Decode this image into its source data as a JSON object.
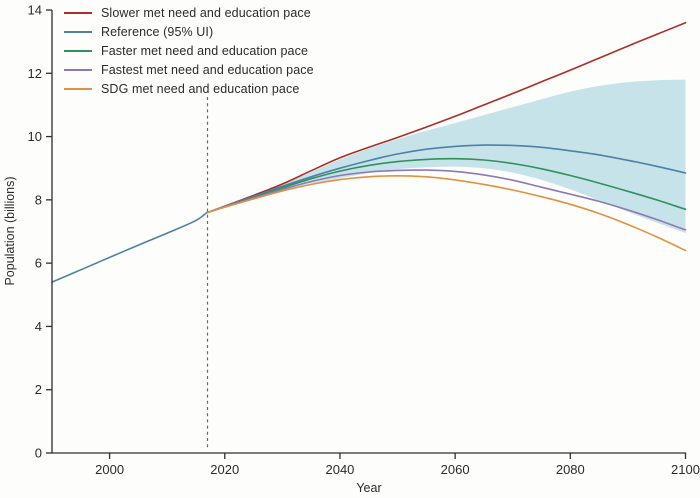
{
  "figure": {
    "background": "#fdfdfc",
    "axis_color": "#2f2f2f",
    "text_color": "#2b2b2b",
    "dashed_line_color": "#4a7082"
  },
  "legend": {
    "items": [
      {
        "label": "Slower met need and education pace",
        "color": "#ab2e26",
        "series": "slower"
      },
      {
        "label": "Reference (95% UI)",
        "color": "#4d81a8",
        "series": "reference"
      },
      {
        "label": "Faster met need and education pace",
        "color": "#30915a",
        "series": "faster"
      },
      {
        "label": "Fastest met need and education pace",
        "color": "#8b7ab5",
        "series": "fastest"
      },
      {
        "label": "SDG met need and education pace",
        "color": "#e2913f",
        "series": "sdg"
      }
    ]
  },
  "chart_data": {
    "type": "line",
    "title": "",
    "xlabel": "Year",
    "ylabel": "Population (billions)",
    "xlim": [
      1990,
      2100
    ],
    "ylim": [
      0,
      14
    ],
    "x_ticks": [
      2000,
      2020,
      2040,
      2060,
      2080,
      2100
    ],
    "y_ticks": [
      0,
      2,
      4,
      6,
      8,
      10,
      12,
      14
    ],
    "grid": false,
    "legend_position": "top-left",
    "reference_year_line": 2017,
    "historical": {
      "name": "historical-observed",
      "color": "#4d81a8",
      "x": [
        1990,
        1995,
        2000,
        2005,
        2010,
        2015,
        2017
      ],
      "y": [
        5.4,
        5.79,
        6.18,
        6.57,
        6.95,
        7.35,
        7.62
      ]
    },
    "projection_years": [
      2017,
      2020,
      2025,
      2030,
      2035,
      2040,
      2045,
      2050,
      2055,
      2060,
      2065,
      2070,
      2075,
      2080,
      2085,
      2090,
      2095,
      2100
    ],
    "series": [
      {
        "name": "slower",
        "label": "Slower met need and education pace",
        "color": "#ab2e26",
        "values": [
          7.6,
          7.8,
          8.14,
          8.5,
          8.92,
          9.33,
          9.66,
          9.97,
          10.3,
          10.64,
          11.0,
          11.36,
          11.73,
          12.1,
          12.48,
          12.86,
          13.23,
          13.6
        ]
      },
      {
        "name": "reference",
        "label": "Reference (95% UI)",
        "color": "#4d81a8",
        "values": [
          7.6,
          7.79,
          8.11,
          8.43,
          8.73,
          9.0,
          9.24,
          9.45,
          9.6,
          9.69,
          9.73,
          9.72,
          9.66,
          9.55,
          9.42,
          9.25,
          9.06,
          8.85
        ]
      },
      {
        "name": "faster",
        "label": "Faster met need and education pace",
        "color": "#30915a",
        "values": [
          7.6,
          7.78,
          8.08,
          8.38,
          8.67,
          8.91,
          9.09,
          9.21,
          9.28,
          9.3,
          9.26,
          9.15,
          8.98,
          8.77,
          8.53,
          8.27,
          8.0,
          7.7
        ]
      },
      {
        "name": "fastest",
        "label": "Fastest met need and education pace",
        "color": "#8b7ab5",
        "values": [
          7.6,
          7.78,
          8.06,
          8.33,
          8.58,
          8.77,
          8.88,
          8.93,
          8.94,
          8.9,
          8.79,
          8.62,
          8.4,
          8.18,
          7.95,
          7.68,
          7.38,
          7.05
        ]
      },
      {
        "name": "sdg",
        "label": "SDG met need and education pace",
        "color": "#e2913f",
        "values": [
          7.6,
          7.77,
          8.03,
          8.28,
          8.49,
          8.64,
          8.73,
          8.76,
          8.73,
          8.63,
          8.49,
          8.31,
          8.1,
          7.86,
          7.57,
          7.22,
          6.83,
          6.4
        ]
      }
    ],
    "uncertainty_band": {
      "name": "reference-95-ui",
      "fill": "#c7e3ea",
      "upper": [
        7.6,
        7.84,
        8.12,
        8.48,
        8.88,
        9.28,
        9.62,
        9.92,
        10.18,
        10.43,
        10.68,
        10.93,
        11.18,
        11.42,
        11.6,
        11.72,
        11.78,
        11.8
      ],
      "lower": [
        7.6,
        7.74,
        8.01,
        8.3,
        8.52,
        8.68,
        8.85,
        8.97,
        9.03,
        9.05,
        9.0,
        8.86,
        8.63,
        8.33,
        7.98,
        7.62,
        7.28,
        6.95
      ]
    }
  }
}
